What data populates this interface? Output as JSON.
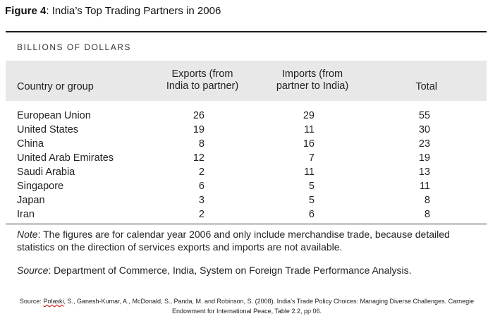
{
  "figure": {
    "label": "Figure 4",
    "title": ": India’s Top Trading Partners in 2006"
  },
  "unit_label": "BILLIONS OF DOLLARS",
  "table": {
    "headers": {
      "country": "Country or group",
      "exports_line1": "Exports (from",
      "exports_line2": "India to partner)",
      "imports_line1": "Imports (from",
      "imports_line2": "partner to India)",
      "total": "Total"
    },
    "rows": [
      {
        "country": "European Union",
        "exports": "26",
        "imports": "29",
        "total": "55"
      },
      {
        "country": "United States",
        "exports": "19",
        "imports": "11",
        "total": "30"
      },
      {
        "country": "China",
        "exports": "8",
        "imports": "16",
        "total": "23"
      },
      {
        "country": "United Arab Emirates",
        "exports": "12",
        "imports": "7",
        "total": "19"
      },
      {
        "country": "Saudi Arabia",
        "exports": "2",
        "imports": "11",
        "total": "13"
      },
      {
        "country": "Singapore",
        "exports": "6",
        "imports": "5",
        "total": "11"
      },
      {
        "country": "Japan",
        "exports": "3",
        "imports": "5",
        "total": "8"
      },
      {
        "country": "Iran",
        "exports": "2",
        "imports": "6",
        "total": "8"
      }
    ]
  },
  "note": {
    "label": "Note",
    "text": ": The figures are for calendar year 2006 and only include merchandise trade, because detailed statistics on the direction of services exports and imports are not available."
  },
  "source": {
    "label": "Source",
    "text": ": Department of Commerce, India, System on Foreign Trade Performance Analysis."
  },
  "citation": {
    "prefix": "Source: ",
    "author_first": "Polaski",
    "rest_line1": ", S., Ganesh-Kumar, A., McDonald, S., Panda, M. and Robinson, S. (2008). India’s Trade Policy Choices: Managing Diverse Challenges. Carnegie",
    "line2": "Endowment for International Peace, Table 2.2, pp 06."
  }
}
